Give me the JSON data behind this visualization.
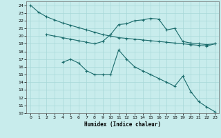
{
  "xlabel": "Humidex (Indice chaleur)",
  "ylabel": "",
  "xlim": [
    -0.5,
    23.5
  ],
  "ylim": [
    10,
    24.5
  ],
  "yticks": [
    10,
    11,
    12,
    13,
    14,
    15,
    16,
    17,
    18,
    19,
    20,
    21,
    22,
    23,
    24
  ],
  "xticks": [
    0,
    1,
    2,
    3,
    4,
    5,
    6,
    7,
    8,
    9,
    10,
    11,
    12,
    13,
    14,
    15,
    16,
    17,
    18,
    19,
    20,
    21,
    22,
    23
  ],
  "bg_color": "#c8ecec",
  "grid_color": "#a8d8d8",
  "line_color": "#1a6b6b",
  "line1_x": [
    0,
    1,
    2,
    3,
    4,
    5,
    6,
    7,
    8,
    9,
    10,
    11,
    12,
    13,
    14,
    15,
    16,
    17,
    18,
    19,
    20,
    21,
    22,
    23
  ],
  "line1_y": [
    24.0,
    23.1,
    22.5,
    22.1,
    21.7,
    21.4,
    21.1,
    20.8,
    20.5,
    20.2,
    20.0,
    19.8,
    19.7,
    19.6,
    19.5,
    19.4,
    19.3,
    19.2,
    19.1,
    19.0,
    18.9,
    18.8,
    18.7,
    19.0
  ],
  "line2_x": [
    2,
    3,
    4,
    5,
    6,
    7,
    8,
    9,
    10,
    11,
    12,
    13,
    14,
    15,
    16,
    17,
    18,
    19,
    20,
    21,
    22,
    23
  ],
  "line2_y": [
    20.2,
    20.0,
    19.8,
    19.6,
    19.4,
    19.2,
    19.0,
    19.3,
    20.2,
    21.5,
    21.6,
    22.0,
    22.1,
    22.3,
    22.2,
    20.8,
    21.0,
    19.3,
    19.1,
    19.0,
    18.9,
    19.0
  ],
  "line3_x": [
    4,
    5,
    6,
    7,
    8,
    9,
    10,
    11,
    12,
    13,
    14,
    15,
    16,
    17,
    18,
    19,
    20,
    21,
    22,
    23
  ],
  "line3_y": [
    16.6,
    17.0,
    16.5,
    15.5,
    15.0,
    15.0,
    15.0,
    18.2,
    17.0,
    16.0,
    15.5,
    15.0,
    14.5,
    14.0,
    13.5,
    14.8,
    12.8,
    11.5,
    10.8,
    10.2
  ]
}
